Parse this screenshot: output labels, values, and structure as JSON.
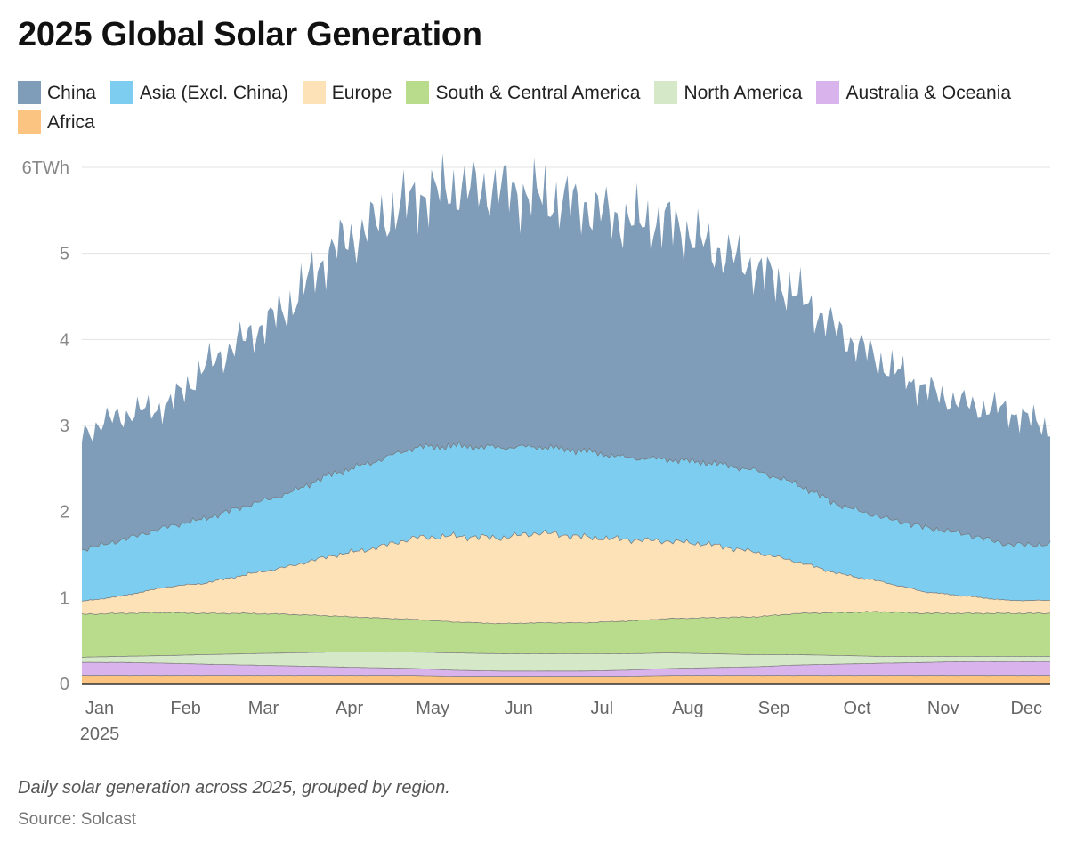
{
  "title": "2025 Global Solar Generation",
  "caption": "Daily solar generation across 2025, grouped by region.",
  "source": "Source: Solcast",
  "chart_data": {
    "type": "area",
    "stacked": true,
    "title": "2025 Global Solar Generation",
    "ylabel": "TWh",
    "ylim": [
      0,
      6
    ],
    "yticks": [
      {
        "value": 0,
        "label": "0"
      },
      {
        "value": 1,
        "label": "1"
      },
      {
        "value": 2,
        "label": "2"
      },
      {
        "value": 3,
        "label": "3"
      },
      {
        "value": 4,
        "label": "4"
      },
      {
        "value": 5,
        "label": "5"
      },
      {
        "value": 6,
        "label": "6TWh"
      }
    ],
    "xticks": [
      {
        "day": 1,
        "label": "Jan",
        "sublabel": "2025"
      },
      {
        "day": 32,
        "label": "Feb"
      },
      {
        "day": 60,
        "label": "Mar"
      },
      {
        "day": 91,
        "label": "Apr"
      },
      {
        "day": 121,
        "label": "May"
      },
      {
        "day": 152,
        "label": "Jun"
      },
      {
        "day": 182,
        "label": "Jul"
      },
      {
        "day": 213,
        "label": "Aug"
      },
      {
        "day": 244,
        "label": "Sep"
      },
      {
        "day": 274,
        "label": "Oct"
      },
      {
        "day": 305,
        "label": "Nov"
      },
      {
        "day": 335,
        "label": "Dec"
      }
    ],
    "x_unit": "day of year",
    "x_range": [
      1,
      350
    ],
    "legend_position": "top",
    "grid": true,
    "series_order_bottom_to_top": [
      "Africa",
      "Australia & Oceania",
      "North America",
      "South & Central America",
      "Europe",
      "Asia (Excl. China)",
      "China"
    ],
    "series": [
      {
        "name": "China",
        "color": "#7f9cb8",
        "x": [
          1,
          15,
          32,
          45,
          60,
          75,
          91,
          105,
          121,
          135,
          152,
          166,
          182,
          197,
          213,
          228,
          244,
          259,
          274,
          289,
          305,
          320,
          335,
          350
        ],
        "values": [
          1.35,
          1.45,
          1.4,
          1.75,
          1.95,
          2.15,
          2.6,
          2.75,
          2.9,
          3.0,
          3.0,
          2.9,
          2.85,
          2.75,
          2.75,
          2.5,
          2.35,
          2.2,
          2.0,
          1.8,
          1.6,
          1.5,
          1.55,
          1.35
        ]
      },
      {
        "name": "Asia (Excl. China)",
        "color": "#7dcdf0",
        "x": [
          1,
          15,
          32,
          45,
          60,
          75,
          91,
          105,
          121,
          135,
          152,
          166,
          182,
          197,
          213,
          228,
          244,
          259,
          274,
          289,
          305,
          320,
          335,
          350
        ],
        "values": [
          0.6,
          0.65,
          0.7,
          0.75,
          0.8,
          0.85,
          0.95,
          1.0,
          1.05,
          1.05,
          1.05,
          1.0,
          1.0,
          0.95,
          0.95,
          0.95,
          0.95,
          0.9,
          0.8,
          0.75,
          0.75,
          0.72,
          0.65,
          0.65
        ]
      },
      {
        "name": "Europe",
        "color": "#fde1b7",
        "x": [
          1,
          15,
          32,
          45,
          60,
          75,
          91,
          105,
          121,
          135,
          152,
          166,
          182,
          197,
          213,
          228,
          244,
          259,
          274,
          289,
          305,
          320,
          335,
          350
        ],
        "values": [
          0.15,
          0.2,
          0.3,
          0.35,
          0.45,
          0.55,
          0.7,
          0.8,
          0.95,
          1.0,
          1.0,
          1.05,
          1.0,
          0.95,
          0.9,
          0.85,
          0.75,
          0.6,
          0.45,
          0.35,
          0.25,
          0.2,
          0.15,
          0.15
        ]
      },
      {
        "name": "South & Central America",
        "color": "#b9dc8c",
        "x": [
          1,
          15,
          32,
          45,
          60,
          75,
          91,
          105,
          121,
          135,
          152,
          166,
          182,
          197,
          213,
          228,
          244,
          259,
          274,
          289,
          305,
          320,
          335,
          350
        ],
        "values": [
          0.5,
          0.5,
          0.5,
          0.48,
          0.47,
          0.45,
          0.42,
          0.4,
          0.38,
          0.36,
          0.35,
          0.36,
          0.36,
          0.38,
          0.4,
          0.42,
          0.44,
          0.48,
          0.5,
          0.52,
          0.5,
          0.5,
          0.5,
          0.5
        ]
      },
      {
        "name": "North America",
        "color": "#d5e8c8",
        "x": [
          1,
          15,
          32,
          45,
          60,
          75,
          91,
          105,
          121,
          135,
          152,
          166,
          182,
          197,
          213,
          228,
          244,
          259,
          274,
          289,
          305,
          320,
          335,
          350
        ],
        "values": [
          0.06,
          0.07,
          0.09,
          0.11,
          0.13,
          0.15,
          0.17,
          0.18,
          0.19,
          0.2,
          0.2,
          0.2,
          0.2,
          0.19,
          0.18,
          0.16,
          0.14,
          0.12,
          0.1,
          0.08,
          0.07,
          0.06,
          0.06,
          0.06
        ]
      },
      {
        "name": "Australia & Oceania",
        "color": "#d8b3ec",
        "x": [
          1,
          15,
          32,
          45,
          60,
          75,
          91,
          105,
          121,
          135,
          152,
          166,
          182,
          197,
          213,
          228,
          244,
          259,
          274,
          289,
          305,
          320,
          335,
          350
        ],
        "values": [
          0.15,
          0.15,
          0.14,
          0.13,
          0.12,
          0.11,
          0.1,
          0.09,
          0.08,
          0.07,
          0.06,
          0.06,
          0.06,
          0.07,
          0.08,
          0.09,
          0.1,
          0.12,
          0.13,
          0.14,
          0.15,
          0.16,
          0.16,
          0.16
        ]
      },
      {
        "name": "Africa",
        "color": "#fbc581",
        "x": [
          1,
          15,
          32,
          45,
          60,
          75,
          91,
          105,
          121,
          135,
          152,
          166,
          182,
          197,
          213,
          228,
          244,
          259,
          274,
          289,
          305,
          320,
          335,
          350
        ],
        "values": [
          0.1,
          0.1,
          0.1,
          0.1,
          0.1,
          0.1,
          0.1,
          0.1,
          0.1,
          0.09,
          0.09,
          0.09,
          0.09,
          0.09,
          0.1,
          0.1,
          0.1,
          0.1,
          0.1,
          0.1,
          0.1,
          0.1,
          0.1,
          0.1
        ]
      }
    ]
  }
}
